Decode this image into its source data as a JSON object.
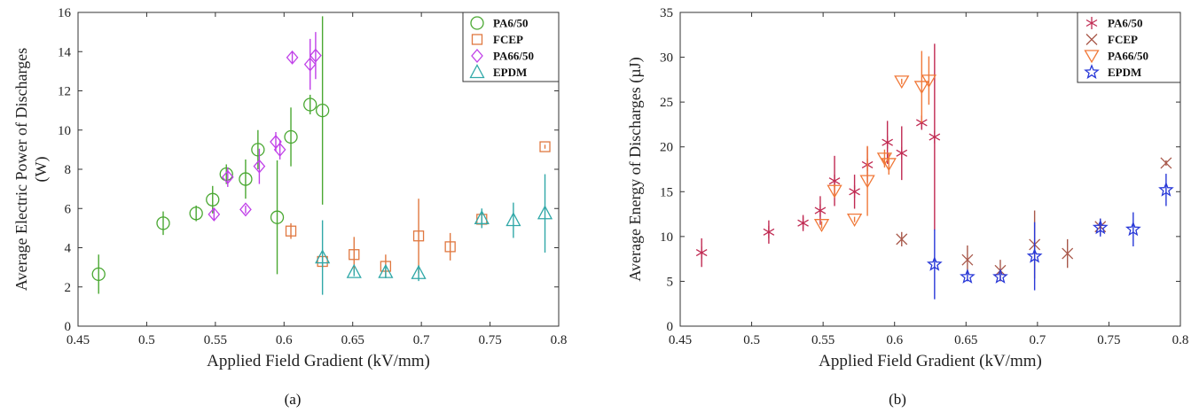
{
  "chart_data": [
    {
      "type": "scatter",
      "panel_label": "(a)",
      "xlabel": "Applied Field Gradient (kV/mm)",
      "ylabel_lines": [
        "Average Electric Power of Discharges",
        "(W)"
      ],
      "xlim": [
        0.45,
        0.8
      ],
      "ylim": [
        0,
        16
      ],
      "xticks": [
        0.45,
        0.5,
        0.55,
        0.6,
        0.65,
        0.7,
        0.75,
        0.8
      ],
      "xtick_labels": [
        "0.45",
        "0.5",
        "0.55",
        "0.6",
        "0.65",
        "0.7",
        "0.75",
        "0.8"
      ],
      "yticks": [
        0,
        2,
        4,
        6,
        8,
        10,
        12,
        14,
        16
      ],
      "ytick_labels": [
        "0",
        "2",
        "4",
        "6",
        "8",
        "10",
        "12",
        "14",
        "16"
      ],
      "legend_position": "top-right",
      "series": [
        {
          "name": "PA6/50",
          "marker": "circle",
          "color": "#4aa832",
          "points": [
            [
              0.465,
              2.65,
              1.0
            ],
            [
              0.512,
              5.25,
              0.6
            ],
            [
              0.536,
              5.75,
              0.4
            ],
            [
              0.548,
              6.45,
              0.7
            ],
            [
              0.558,
              7.75,
              0.5
            ],
            [
              0.572,
              7.5,
              1.0
            ],
            [
              0.581,
              9.0,
              1.0
            ],
            [
              0.595,
              5.55,
              2.9
            ],
            [
              0.605,
              9.65,
              1.5
            ],
            [
              0.619,
              11.3,
              0.5
            ],
            [
              0.628,
              11.0,
              4.8
            ]
          ]
        },
        {
          "name": "FCEP",
          "marker": "square",
          "color": "#e07840",
          "points": [
            [
              0.605,
              4.85,
              0.4
            ],
            [
              0.628,
              3.3,
              0.3
            ],
            [
              0.651,
              3.65,
              0.9
            ],
            [
              0.674,
              3.05,
              0.6
            ],
            [
              0.698,
              4.6,
              1.9
            ],
            [
              0.721,
              4.05,
              0.7
            ],
            [
              0.744,
              5.45,
              0.3
            ],
            [
              0.79,
              9.15,
              0.1
            ]
          ]
        },
        {
          "name": "PA66/50",
          "marker": "diamond",
          "color": "#c040e8",
          "points": [
            [
              0.549,
              5.7,
              0.3
            ],
            [
              0.559,
              7.6,
              0.5
            ],
            [
              0.572,
              5.95,
              0.2
            ],
            [
              0.582,
              8.15,
              0.9
            ],
            [
              0.594,
              9.4,
              0.5
            ],
            [
              0.597,
              9.0,
              0.5
            ],
            [
              0.606,
              13.7,
              0.3
            ],
            [
              0.619,
              13.35,
              1.3
            ],
            [
              0.623,
              13.8,
              1.2
            ]
          ]
        },
        {
          "name": "EPDM",
          "marker": "triangle",
          "color": "#30a8a8",
          "points": [
            [
              0.628,
              3.5,
              1.9
            ],
            [
              0.651,
              2.75,
              0.2
            ],
            [
              0.674,
              2.75,
              0.3
            ],
            [
              0.698,
              2.7,
              0.4
            ],
            [
              0.744,
              5.5,
              0.5
            ],
            [
              0.767,
              5.4,
              0.9
            ],
            [
              0.79,
              5.75,
              2.0
            ]
          ]
        }
      ]
    },
    {
      "type": "scatter",
      "panel_label": "(b)",
      "xlabel": "Applied Field Gradient (kV/mm)",
      "ylabel_lines": [
        "Average Energy of Discharges (µJ)"
      ],
      "xlim": [
        0.45,
        0.8
      ],
      "ylim": [
        0,
        35
      ],
      "xticks": [
        0.45,
        0.5,
        0.55,
        0.6,
        0.65,
        0.7,
        0.75,
        0.8
      ],
      "xtick_labels": [
        "0.45",
        "0.5",
        "0.55",
        "0.6",
        "0.65",
        "0.7",
        "0.75",
        "0.8"
      ],
      "yticks": [
        0,
        5,
        10,
        15,
        20,
        25,
        30,
        35
      ],
      "ytick_labels": [
        "0",
        "5",
        "10",
        "15",
        "20",
        "25",
        "30",
        "35"
      ],
      "legend_position": "top-right",
      "series": [
        {
          "name": "PA6/50",
          "marker": "asterisk",
          "color": "#c02a52",
          "points": [
            [
              0.465,
              8.2,
              1.6
            ],
            [
              0.512,
              10.5,
              1.3
            ],
            [
              0.536,
              11.5,
              0.9
            ],
            [
              0.548,
              12.9,
              1.6
            ],
            [
              0.558,
              16.2,
              2.8
            ],
            [
              0.572,
              15.0,
              1.9
            ],
            [
              0.581,
              18.0,
              2.0
            ],
            [
              0.595,
              20.5,
              2.4
            ],
            [
              0.605,
              19.3,
              3.0
            ],
            [
              0.619,
              22.7,
              0.8
            ],
            [
              0.628,
              21.1,
              10.4
            ]
          ]
        },
        {
          "name": "FCEP",
          "marker": "cross",
          "color": "#a8584a",
          "points": [
            [
              0.605,
              9.7,
              0.8
            ],
            [
              0.651,
              7.4,
              1.6
            ],
            [
              0.674,
              6.2,
              1.2
            ],
            [
              0.698,
              9.1,
              3.8
            ],
            [
              0.721,
              8.1,
              1.6
            ],
            [
              0.744,
              11.1,
              0.9
            ],
            [
              0.79,
              18.2,
              0.3
            ]
          ]
        },
        {
          "name": "PA66/50",
          "marker": "triangle-down",
          "color": "#f07838",
          "points": [
            [
              0.549,
              11.3,
              0.4
            ],
            [
              0.558,
              15.1,
              0.7
            ],
            [
              0.572,
              11.9,
              0.3
            ],
            [
              0.581,
              16.2,
              3.9
            ],
            [
              0.593,
              18.7,
              1.0
            ],
            [
              0.596,
              18.1,
              1.2
            ],
            [
              0.605,
              27.3,
              0.3
            ],
            [
              0.619,
              26.7,
              4.0
            ],
            [
              0.624,
              27.4,
              2.7
            ]
          ]
        },
        {
          "name": "EPDM",
          "marker": "star",
          "color": "#2838d8",
          "points": [
            [
              0.628,
              6.9,
              3.9
            ],
            [
              0.651,
              5.5,
              0.5
            ],
            [
              0.674,
              5.5,
              0.4
            ],
            [
              0.698,
              7.8,
              3.8
            ],
            [
              0.744,
              11.0,
              1.0
            ],
            [
              0.767,
              10.8,
              1.9
            ],
            [
              0.79,
              15.2,
              1.8
            ]
          ]
        }
      ]
    }
  ]
}
